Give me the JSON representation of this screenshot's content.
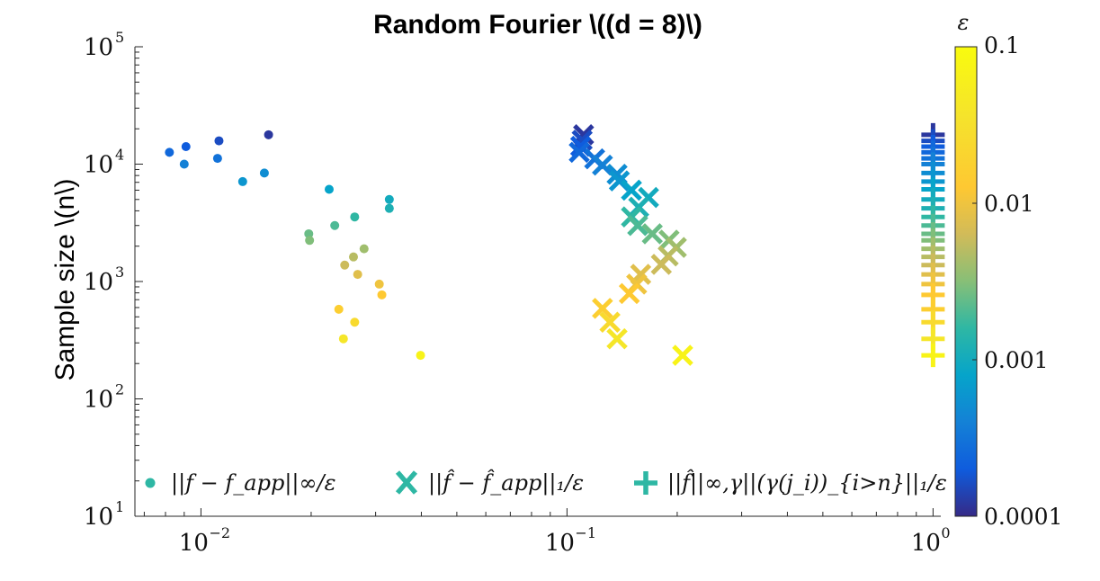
{
  "chart_data": {
    "type": "scatter",
    "title": "Random Fourier \\((d = 8)\\)",
    "xlabel": "",
    "ylabel": "Sample size \\(n\\)",
    "xscale": "log",
    "yscale": "log",
    "xlim": [
      0.0066,
      1.05
    ],
    "ylim": [
      10,
      100000
    ],
    "x_ticks": [
      {
        "base": "10",
        "exp": "−2",
        "value": 0.01
      },
      {
        "base": "10",
        "exp": "−1",
        "value": 0.1
      },
      {
        "base": "10",
        "exp": "0",
        "value": 1
      }
    ],
    "y_ticks": [
      {
        "base": "10",
        "exp": "1",
        "value": 10
      },
      {
        "base": "10",
        "exp": "2",
        "value": 100
      },
      {
        "base": "10",
        "exp": "3",
        "value": 1000
      },
      {
        "base": "10",
        "exp": "4",
        "value": 10000
      },
      {
        "base": "10",
        "exp": "5",
        "value": 100000
      }
    ],
    "colorbar": {
      "label": "ε",
      "scale": "log",
      "range": [
        0.0001,
        0.1
      ],
      "colormap": "parula",
      "ticks": [
        {
          "label": "0.1",
          "value": 0.1
        },
        {
          "label": "0.01",
          "value": 0.01
        },
        {
          "label": "0.001",
          "value": 0.001
        },
        {
          "label": "0.0001",
          "value": 0.0001
        }
      ]
    },
    "legend": {
      "placement": "bottom"
    },
    "series": [
      {
        "name": "||f − f_app||∞/ε",
        "marker": "dot",
        "points": [
          {
            "x": 0.0153,
            "y": 17800,
            "eps": 0.00012
          },
          {
            "x": 0.0112,
            "y": 15800,
            "eps": 0.00016
          },
          {
            "x": 0.0091,
            "y": 14100,
            "eps": 0.0002
          },
          {
            "x": 0.0082,
            "y": 12600,
            "eps": 0.00025
          },
          {
            "x": 0.0111,
            "y": 11200,
            "eps": 0.0003
          },
          {
            "x": 0.009,
            "y": 10000,
            "eps": 0.0004
          },
          {
            "x": 0.0149,
            "y": 8400,
            "eps": 0.0005
          },
          {
            "x": 0.013,
            "y": 7100,
            "eps": 0.0006
          },
          {
            "x": 0.0224,
            "y": 6100,
            "eps": 0.0008
          },
          {
            "x": 0.0327,
            "y": 5000,
            "eps": 0.001
          },
          {
            "x": 0.0327,
            "y": 4200,
            "eps": 0.0012
          },
          {
            "x": 0.0263,
            "y": 3550,
            "eps": 0.0016
          },
          {
            "x": 0.0232,
            "y": 3000,
            "eps": 0.002
          },
          {
            "x": 0.0197,
            "y": 2550,
            "eps": 0.0025
          },
          {
            "x": 0.0198,
            "y": 2240,
            "eps": 0.003
          },
          {
            "x": 0.0279,
            "y": 1900,
            "eps": 0.004
          },
          {
            "x": 0.0261,
            "y": 1620,
            "eps": 0.005
          },
          {
            "x": 0.0247,
            "y": 1380,
            "eps": 0.006
          },
          {
            "x": 0.0268,
            "y": 1150,
            "eps": 0.008
          },
          {
            "x": 0.0307,
            "y": 950,
            "eps": 0.01
          },
          {
            "x": 0.0312,
            "y": 770,
            "eps": 0.013
          },
          {
            "x": 0.0238,
            "y": 580,
            "eps": 0.016
          },
          {
            "x": 0.0263,
            "y": 450,
            "eps": 0.025
          },
          {
            "x": 0.0245,
            "y": 325,
            "eps": 0.04
          },
          {
            "x": 0.0398,
            "y": 235,
            "eps": 0.07
          }
        ]
      },
      {
        "name": "||f̂ − f̂_app||₁/ε",
        "marker": "x",
        "points": [
          {
            "x": 0.111,
            "y": 17800,
            "eps": 0.00012
          },
          {
            "x": 0.11,
            "y": 16000,
            "eps": 0.00016
          },
          {
            "x": 0.109,
            "y": 14200,
            "eps": 0.0002
          },
          {
            "x": 0.108,
            "y": 12600,
            "eps": 0.00025
          },
          {
            "x": 0.119,
            "y": 11100,
            "eps": 0.0003
          },
          {
            "x": 0.125,
            "y": 9800,
            "eps": 0.0004
          },
          {
            "x": 0.137,
            "y": 8200,
            "eps": 0.0005
          },
          {
            "x": 0.139,
            "y": 7200,
            "eps": 0.0006
          },
          {
            "x": 0.15,
            "y": 6000,
            "eps": 0.0008
          },
          {
            "x": 0.167,
            "y": 5200,
            "eps": 0.001
          },
          {
            "x": 0.157,
            "y": 4300,
            "eps": 0.0012
          },
          {
            "x": 0.15,
            "y": 3550,
            "eps": 0.0016
          },
          {
            "x": 0.156,
            "y": 3000,
            "eps": 0.002
          },
          {
            "x": 0.171,
            "y": 2550,
            "eps": 0.0025
          },
          {
            "x": 0.19,
            "y": 2250,
            "eps": 0.003
          },
          {
            "x": 0.199,
            "y": 1950,
            "eps": 0.004
          },
          {
            "x": 0.189,
            "y": 1650,
            "eps": 0.005
          },
          {
            "x": 0.181,
            "y": 1400,
            "eps": 0.006
          },
          {
            "x": 0.159,
            "y": 1150,
            "eps": 0.008
          },
          {
            "x": 0.155,
            "y": 950,
            "eps": 0.01
          },
          {
            "x": 0.148,
            "y": 790,
            "eps": 0.013
          },
          {
            "x": 0.125,
            "y": 590,
            "eps": 0.016
          },
          {
            "x": 0.131,
            "y": 450,
            "eps": 0.025
          },
          {
            "x": 0.137,
            "y": 325,
            "eps": 0.04
          },
          {
            "x": 0.207,
            "y": 235,
            "eps": 0.07
          }
        ]
      },
      {
        "name": "||f̂||∞,γ||(γ(j_i))_{i>n}||₁/ε",
        "marker": "plus",
        "points": [
          {
            "x": 1,
            "y": 17800,
            "eps": 0.00012
          },
          {
            "x": 1,
            "y": 15800,
            "eps": 0.00016
          },
          {
            "x": 1,
            "y": 14100,
            "eps": 0.0002
          },
          {
            "x": 1,
            "y": 12600,
            "eps": 0.00025
          },
          {
            "x": 1,
            "y": 11200,
            "eps": 0.0003
          },
          {
            "x": 1,
            "y": 10000,
            "eps": 0.0004
          },
          {
            "x": 1,
            "y": 8400,
            "eps": 0.0005
          },
          {
            "x": 1,
            "y": 7100,
            "eps": 0.0006
          },
          {
            "x": 1,
            "y": 6100,
            "eps": 0.0008
          },
          {
            "x": 1,
            "y": 5000,
            "eps": 0.001
          },
          {
            "x": 1,
            "y": 4200,
            "eps": 0.0012
          },
          {
            "x": 1,
            "y": 3550,
            "eps": 0.0016
          },
          {
            "x": 1,
            "y": 3000,
            "eps": 0.002
          },
          {
            "x": 1,
            "y": 2550,
            "eps": 0.0025
          },
          {
            "x": 1,
            "y": 2240,
            "eps": 0.003
          },
          {
            "x": 1,
            "y": 1900,
            "eps": 0.004
          },
          {
            "x": 1,
            "y": 1620,
            "eps": 0.005
          },
          {
            "x": 1,
            "y": 1380,
            "eps": 0.006
          },
          {
            "x": 1,
            "y": 1150,
            "eps": 0.008
          },
          {
            "x": 1,
            "y": 950,
            "eps": 0.01
          },
          {
            "x": 1,
            "y": 770,
            "eps": 0.013
          },
          {
            "x": 1,
            "y": 580,
            "eps": 0.016
          },
          {
            "x": 1,
            "y": 450,
            "eps": 0.025
          },
          {
            "x": 1,
            "y": 325,
            "eps": 0.04
          },
          {
            "x": 1,
            "y": 235,
            "eps": 0.07
          }
        ]
      }
    ]
  }
}
